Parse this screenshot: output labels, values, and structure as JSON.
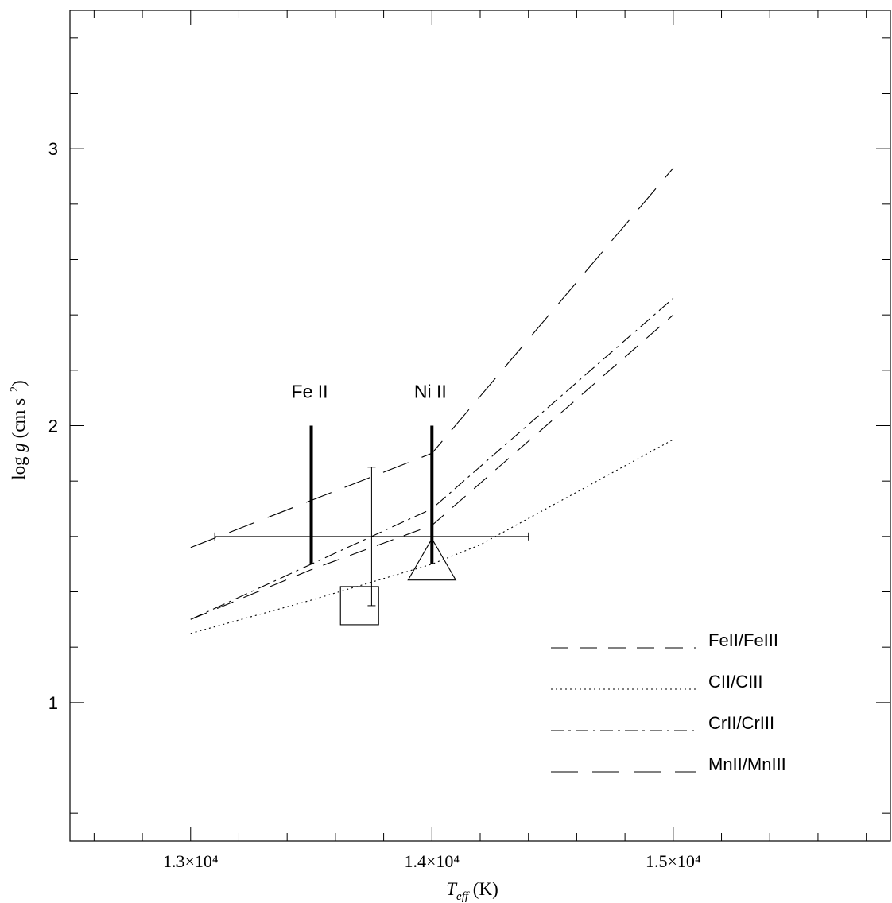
{
  "chart_data": {
    "type": "line",
    "xlabel": "T_eff (K)",
    "ylabel": "log g (cm s⁻²)",
    "xlim": [
      12500,
      15900
    ],
    "ylim": [
      0.5,
      3.5
    ],
    "x_ticks": [
      {
        "value": 13000,
        "label": "1.3×10⁴"
      },
      {
        "value": 14000,
        "label": "1.4×10⁴"
      },
      {
        "value": 15000,
        "label": "1.5×10⁴"
      }
    ],
    "y_ticks": [
      {
        "value": 1,
        "label": "1"
      },
      {
        "value": 2,
        "label": "2"
      },
      {
        "value": 3,
        "label": "3"
      }
    ],
    "series": [
      {
        "name": "FeII/FeIII",
        "dash": "22,14",
        "x": [
          13000,
          13500,
          14000,
          15000
        ],
        "y": [
          1.3,
          1.48,
          1.64,
          2.4
        ]
      },
      {
        "name": "CII/CIII",
        "dash": "2,4",
        "x": [
          13000,
          13500,
          14000,
          14200,
          15000
        ],
        "y": [
          1.25,
          1.37,
          1.5,
          1.57,
          1.95
        ]
      },
      {
        "name": "CrII/CrIII",
        "dash": "16,6,3,6",
        "x": [
          13000,
          13500,
          14000,
          15000
        ],
        "y": [
          1.3,
          1.5,
          1.7,
          2.46
        ]
      },
      {
        "name": "MnII/MnIII",
        "dash": "34,18",
        "x": [
          13000,
          13500,
          14000,
          15000
        ],
        "y": [
          1.56,
          1.73,
          1.9,
          2.93
        ]
      }
    ],
    "markers": [
      {
        "label": "Fe II",
        "x": 13500,
        "y_low": 1.5,
        "y_high": 2.0
      },
      {
        "label": "Ni II",
        "x": 14000,
        "y_low": 1.5,
        "y_high": 2.0
      }
    ],
    "error_point": {
      "x": 13750,
      "y": 1.6,
      "x_err": 650,
      "y_low": 1.35,
      "y_high": 1.85
    },
    "square_point": {
      "x": 13700,
      "y": 1.35
    },
    "triangle_point": {
      "x": 14000,
      "y": 1.5
    },
    "legend_position": "bottom-right"
  }
}
